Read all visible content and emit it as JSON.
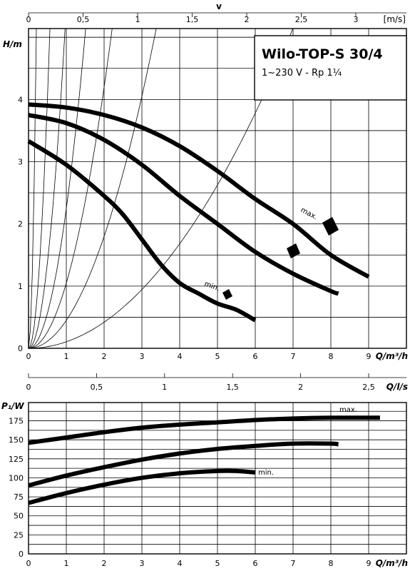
{
  "header": {
    "v_axis_label": "v",
    "v_axis_unit": "[m/s]",
    "title": "Wilo-TOP-S 30/4",
    "subtitle": "1~230 V - Rp 1¼"
  },
  "chart_data": [
    {
      "type": "line",
      "title": "Wilo-TOP-S 30/4",
      "subtitle": "1~230 V - Rp 1¼",
      "xlabel": "Q/m³/h",
      "ylabel": "H/m",
      "secondary_x_label": "v",
      "secondary_x_unit": "[m/s]",
      "secondary_x_ticks": [
        "0",
        "0,5",
        "1",
        "1,5",
        "2",
        "2,5",
        "3"
      ],
      "x_ticks": [
        "0",
        "1",
        "2",
        "3",
        "4",
        "5",
        "6",
        "7",
        "8",
        "9"
      ],
      "y_ticks": [
        "0",
        "1",
        "2",
        "3",
        "4"
      ],
      "xlim": [
        0,
        10
      ],
      "ylim": [
        0,
        5
      ],
      "grid": true,
      "series": [
        {
          "name": "max.",
          "x": [
            0,
            1,
            2,
            3,
            4,
            5,
            6,
            7,
            8,
            9
          ],
          "y": [
            3.92,
            3.87,
            3.75,
            3.55,
            3.25,
            2.85,
            2.4,
            2.0,
            1.5,
            1.15
          ]
        },
        {
          "name": "",
          "x": [
            0,
            1,
            2,
            3,
            4,
            5,
            6,
            7,
            8,
            8.2
          ],
          "y": [
            3.75,
            3.62,
            3.35,
            2.95,
            2.45,
            2.0,
            1.55,
            1.2,
            0.92,
            0.88
          ]
        },
        {
          "name": "min.",
          "x": [
            0,
            1,
            2,
            2.5,
            3,
            3.5,
            4,
            4.5,
            5,
            5.5,
            6
          ],
          "y": [
            3.33,
            2.95,
            2.45,
            2.15,
            1.75,
            1.35,
            1.05,
            0.88,
            0.72,
            0.62,
            0.45
          ]
        }
      ],
      "annotations": [
        "max.",
        "min."
      ]
    },
    {
      "type": "line",
      "xlabel": "Q/m³/h",
      "ylabel": "P₁/W",
      "secondary_x_label": "Q/l/s",
      "secondary_x_ticks": [
        "0",
        "0,5",
        "1",
        "1,5",
        "2",
        "2,5"
      ],
      "x_ticks": [
        "0",
        "1",
        "2",
        "3",
        "4",
        "5",
        "6",
        "7",
        "8",
        "9"
      ],
      "y_ticks": [
        "0",
        "25",
        "50",
        "75",
        "100",
        "125",
        "150",
        "175"
      ],
      "xlim": [
        0,
        10
      ],
      "ylim": [
        0,
        200
      ],
      "grid": true,
      "series": [
        {
          "name": "max.",
          "x": [
            0,
            1,
            2,
            3,
            4,
            5,
            6,
            7,
            8,
            9,
            9.3
          ],
          "y": [
            146,
            153,
            160,
            166,
            170,
            173,
            176,
            178,
            179,
            179,
            179
          ]
        },
        {
          "name": "",
          "x": [
            0,
            1,
            2,
            3,
            4,
            5,
            6,
            7,
            8,
            8.2
          ],
          "y": [
            90,
            103,
            114,
            124,
            132,
            138,
            142,
            145,
            145,
            144
          ]
        },
        {
          "name": "min.",
          "x": [
            0,
            1,
            2,
            3,
            4,
            5,
            5.5,
            6
          ],
          "y": [
            67,
            80,
            91,
            100,
            106,
            109,
            109,
            107
          ]
        }
      ],
      "annotations": [
        "max.",
        "min."
      ]
    }
  ]
}
